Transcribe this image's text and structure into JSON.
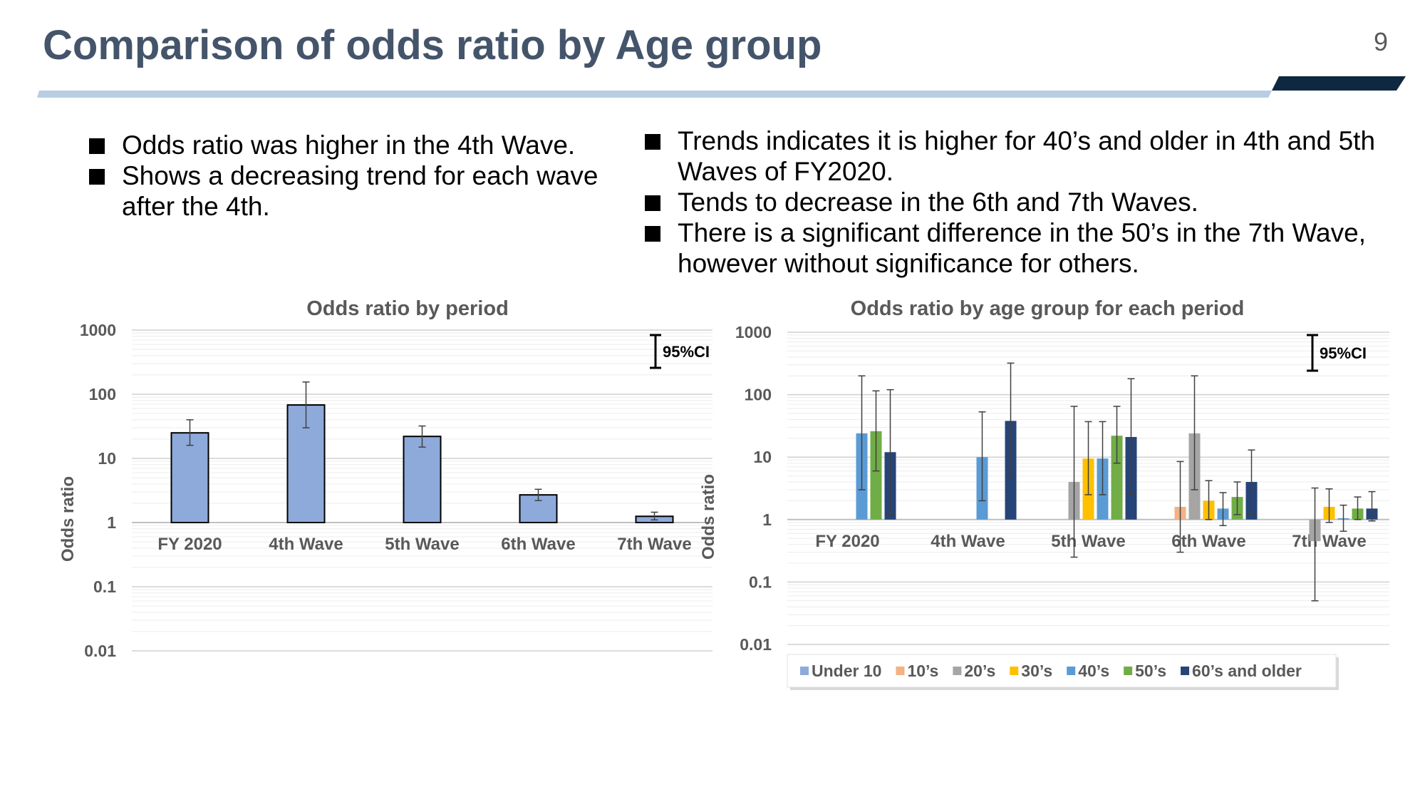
{
  "slide": {
    "title": "Comparison of odds ratio by Age group",
    "page_number": "9"
  },
  "bullets_left": [
    "Odds ratio was higher in the 4th Wave.",
    "Shows a decreasing trend for each wave after the 4th."
  ],
  "bullets_right": [
    "Trends indicates it is higher for 40’s and older in 4th and 5th Waves of FY2020.",
    "Tends to decrease in the 6th and 7th Waves.",
    "There is a significant difference in the 50’s in the 7th Wave, however without significance for others."
  ],
  "colors": {
    "title": "#44546a",
    "rule": "#b8cce4",
    "rule_accent": "#0e2841",
    "axis_text": "#595959",
    "bar_left": "#8eaadb"
  },
  "chart_data": [
    {
      "type": "bar",
      "title": "Odds ratio by period",
      "ylabel": "Odds ratio",
      "yscale": "log",
      "ylim": [
        0.01,
        1000
      ],
      "yticks": [
        "0.01",
        "0.1",
        "1",
        "10",
        "100",
        "1000"
      ],
      "categories": [
        "FY 2020",
        "4th Wave",
        "5th Wave",
        "6th Wave",
        "7th Wave"
      ],
      "values": [
        25,
        68,
        22,
        2.7,
        1.25
      ],
      "ci_low": [
        16,
        30,
        15,
        2.2,
        1.1
      ],
      "ci_high": [
        40,
        155,
        32,
        3.3,
        1.45
      ],
      "color": "#8eaadb",
      "ci_legend": "95%CI",
      "grid": true
    },
    {
      "type": "bar",
      "title": "Odds ratio by age group for each period",
      "ylabel": "Odds ratio",
      "yscale": "log",
      "ylim": [
        0.01,
        1000
      ],
      "yticks": [
        "0.01",
        "0.1",
        "1",
        "10",
        "100",
        "1000"
      ],
      "categories": [
        "FY 2020",
        "4th Wave",
        "5th Wave",
        "6th Wave",
        "7th Wave"
      ],
      "ci_legend": "95%CI",
      "legend_position": "bottom",
      "grid": true,
      "series": [
        {
          "name": "Under 10",
          "color": "#8eaadb",
          "values": [
            null,
            null,
            null,
            null,
            null
          ],
          "ci_low": [
            null,
            null,
            null,
            null,
            null
          ],
          "ci_high": [
            null,
            null,
            null,
            null,
            null
          ]
        },
        {
          "name": "10’s",
          "color": "#f4b183",
          "values": [
            null,
            null,
            null,
            1.6,
            null
          ],
          "ci_low": [
            null,
            null,
            null,
            0.3,
            null
          ],
          "ci_high": [
            null,
            null,
            null,
            8.5,
            null
          ]
        },
        {
          "name": "20’s",
          "color": "#a5a5a5",
          "values": [
            null,
            null,
            4.0,
            24,
            0.45
          ],
          "ci_low": [
            null,
            null,
            0.25,
            3.0,
            0.05
          ],
          "ci_high": [
            null,
            null,
            65,
            200,
            3.2
          ]
        },
        {
          "name": "30’s",
          "color": "#ffc000",
          "values": [
            null,
            null,
            9.5,
            2.0,
            1.6
          ],
          "ci_low": [
            null,
            null,
            2.5,
            1.0,
            0.9
          ],
          "ci_high": [
            null,
            null,
            37,
            4.2,
            3.1
          ]
        },
        {
          "name": "40’s",
          "color": "#5b9bd5",
          "values": [
            24,
            10,
            9.5,
            1.5,
            1.05
          ],
          "ci_low": [
            3.0,
            2.0,
            2.5,
            0.8,
            0.65
          ],
          "ci_high": [
            200,
            53,
            37,
            2.7,
            1.7
          ]
        },
        {
          "name": "50’s",
          "color": "#70ad47",
          "values": [
            26,
            null,
            22,
            2.3,
            1.5
          ],
          "ci_low": [
            6.0,
            null,
            8.0,
            1.2,
            1.0
          ],
          "ci_high": [
            115,
            null,
            65,
            4.0,
            2.3
          ]
        },
        {
          "name": "60’s and older",
          "color": "#264478",
          "values": [
            12,
            38,
            21,
            4.0,
            1.5
          ],
          "ci_low": [
            1.2,
            5.0,
            2.5,
            1.2,
            0.95
          ],
          "ci_high": [
            120,
            320,
            180,
            13,
            2.8
          ]
        }
      ]
    }
  ]
}
